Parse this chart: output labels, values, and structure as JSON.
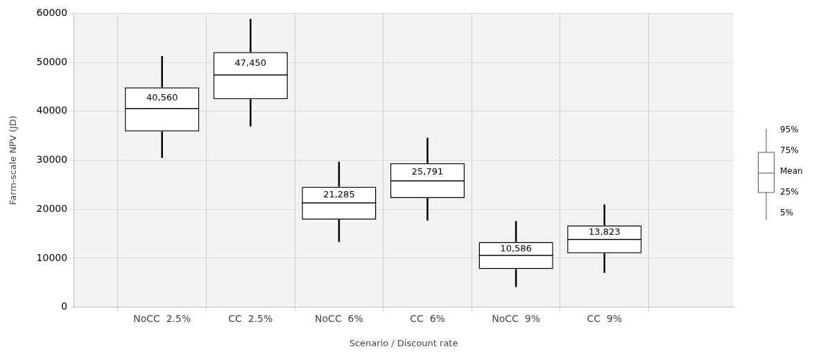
{
  "chart_data": {
    "type": "box",
    "xlabel": "Scenario / Discount rate",
    "ylabel": "Farm-scale NPV (JD)",
    "categories": [
      "NoCC  2.5%",
      "CC  2.5%",
      "NoCC  6%",
      "CC  6%",
      "NoCC  9%",
      "CC  9%"
    ],
    "boxes": [
      {
        "low": 30500,
        "q1": 35900,
        "q3": 44900,
        "high": 51300,
        "mean": 40560
      },
      {
        "low": 36900,
        "q1": 42500,
        "q3": 52100,
        "high": 58900,
        "mean": 47450
      },
      {
        "low": 13300,
        "q1": 17900,
        "q3": 24600,
        "high": 29700,
        "mean": 21285
      },
      {
        "low": 17700,
        "q1": 22300,
        "q3": 29400,
        "high": 34600,
        "mean": 25791
      },
      {
        "low": 4100,
        "q1": 7800,
        "q3": 13300,
        "high": 17600,
        "mean": 10586
      },
      {
        "low": 7000,
        "q1": 11000,
        "q3": 16700,
        "high": 21000,
        "mean": 13823
      }
    ],
    "value_labels": [
      "40,560",
      "47,450",
      "21,285",
      "25,791",
      "10,586",
      "13,823"
    ],
    "ylim": [
      0,
      60000
    ],
    "yticks": [
      0,
      10000,
      20000,
      30000,
      40000,
      50000,
      60000
    ],
    "grid": true,
    "annotations": [
      "95%",
      "75%",
      "Mean",
      "25%",
      "5%"
    ]
  }
}
